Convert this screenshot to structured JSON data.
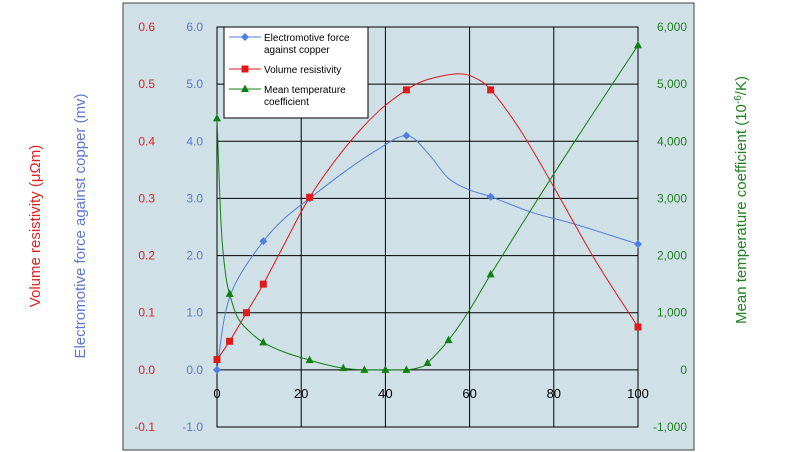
{
  "chart_data": {
    "type": "line",
    "colors": {
      "plot_area": "#cfe0e6",
      "emf": "#4f7fdf",
      "resistivity": "#e01a1a",
      "temp_coeff": "#108010",
      "left_axis_text": "#e02020",
      "left_inner_axis_text": "#5a78d2",
      "right_axis_text": "#208020"
    },
    "xlim": [
      0,
      100
    ],
    "x_ticks": [
      "0",
      "20",
      "40",
      "60",
      "80",
      "100"
    ],
    "axes": {
      "resistivity": {
        "label": "Volume resistivity (μΩm)",
        "range": [
          -0.1,
          0.6
        ],
        "ticks": [
          "0.6",
          "0.5",
          "0.4",
          "0.3",
          "0.2",
          "0.1",
          "0.0",
          "-0.1"
        ]
      },
      "emf": {
        "label": "Electromotive force against copper (mv)",
        "range": [
          -1.0,
          6.0
        ],
        "ticks": [
          "6.0",
          "5.0",
          "4.0",
          "3.0",
          "2.0",
          "1.0",
          "0.0",
          "-1.0"
        ]
      },
      "temp_coeff": {
        "label_prefix": "Mean temperature coefficient (10",
        "label_exp": "-6",
        "label_suffix": "/K)",
        "range": [
          -1000,
          6000
        ],
        "ticks": [
          "6,000",
          "5,000",
          "4,000",
          "3,000",
          "2,000",
          "1,000",
          "0",
          "-1,000"
        ]
      }
    },
    "legend": {
      "placement": "top-left",
      "entries": [
        {
          "lines": [
            "Electromotive force",
            "against copper"
          ],
          "marker": "diamond",
          "series": "emf"
        },
        {
          "lines": [
            "Volume resistivity"
          ],
          "marker": "square",
          "series": "resistivity"
        },
        {
          "lines": [
            "Mean temperature",
            "coefficient"
          ],
          "marker": "triangle",
          "series": "temp_coeff"
        }
      ]
    },
    "series": [
      {
        "key": "emf",
        "axis": "emf",
        "marker": "diamond",
        "points": [
          [
            0,
            0.0
          ],
          [
            11,
            2.25
          ],
          [
            22,
            3.0
          ],
          [
            45,
            4.1
          ],
          [
            65,
            3.03
          ],
          [
            100,
            2.2
          ]
        ],
        "curve": [
          [
            0,
            0.0
          ],
          [
            2,
            1.0
          ],
          [
            5,
            1.6
          ],
          [
            11,
            2.25
          ],
          [
            16,
            2.65
          ],
          [
            22,
            3.0
          ],
          [
            30,
            3.45
          ],
          [
            38,
            3.85
          ],
          [
            45,
            4.1
          ],
          [
            50,
            3.8
          ],
          [
            55,
            3.35
          ],
          [
            60,
            3.15
          ],
          [
            65,
            3.03
          ],
          [
            75,
            2.75
          ],
          [
            85,
            2.55
          ],
          [
            100,
            2.2
          ]
        ]
      },
      {
        "key": "resistivity",
        "axis": "resistivity",
        "marker": "square",
        "points": [
          [
            0,
            0.018
          ],
          [
            3,
            0.05
          ],
          [
            7,
            0.1
          ],
          [
            11,
            0.15
          ],
          [
            22,
            0.302
          ],
          [
            45,
            0.49
          ],
          [
            65,
            0.49
          ],
          [
            100,
            0.075
          ]
        ],
        "curve": [
          [
            0,
            0.018
          ],
          [
            3,
            0.05
          ],
          [
            7,
            0.1
          ],
          [
            11,
            0.15
          ],
          [
            16,
            0.22
          ],
          [
            22,
            0.302
          ],
          [
            30,
            0.385
          ],
          [
            38,
            0.45
          ],
          [
            45,
            0.49
          ],
          [
            50,
            0.508
          ],
          [
            57,
            0.518
          ],
          [
            61,
            0.512
          ],
          [
            65,
            0.49
          ],
          [
            72,
            0.42
          ],
          [
            80,
            0.32
          ],
          [
            90,
            0.19
          ],
          [
            100,
            0.075
          ]
        ]
      },
      {
        "key": "temp_coeff",
        "axis": "temp_coeff",
        "marker": "triangle",
        "points": [
          [
            0,
            4400
          ],
          [
            3,
            1330
          ],
          [
            11,
            480
          ],
          [
            22,
            170
          ],
          [
            30,
            30
          ],
          [
            35,
            0
          ],
          [
            40,
            0
          ],
          [
            45,
            0
          ],
          [
            50,
            120
          ],
          [
            55,
            520
          ],
          [
            65,
            1670
          ],
          [
            100,
            5680
          ]
        ],
        "curve": [
          [
            0,
            4400
          ],
          [
            1,
            2500
          ],
          [
            2,
            1700
          ],
          [
            3,
            1330
          ],
          [
            5,
            900
          ],
          [
            8,
            650
          ],
          [
            11,
            480
          ],
          [
            16,
            310
          ],
          [
            22,
            170
          ],
          [
            26,
            90
          ],
          [
            30,
            30
          ],
          [
            35,
            0
          ],
          [
            40,
            0
          ],
          [
            45,
            0
          ],
          [
            48,
            40
          ],
          [
            50,
            120
          ],
          [
            55,
            520
          ],
          [
            60,
            1050
          ],
          [
            65,
            1670
          ],
          [
            75,
            2850
          ],
          [
            85,
            4000
          ],
          [
            100,
            5680
          ]
        ]
      }
    ]
  }
}
